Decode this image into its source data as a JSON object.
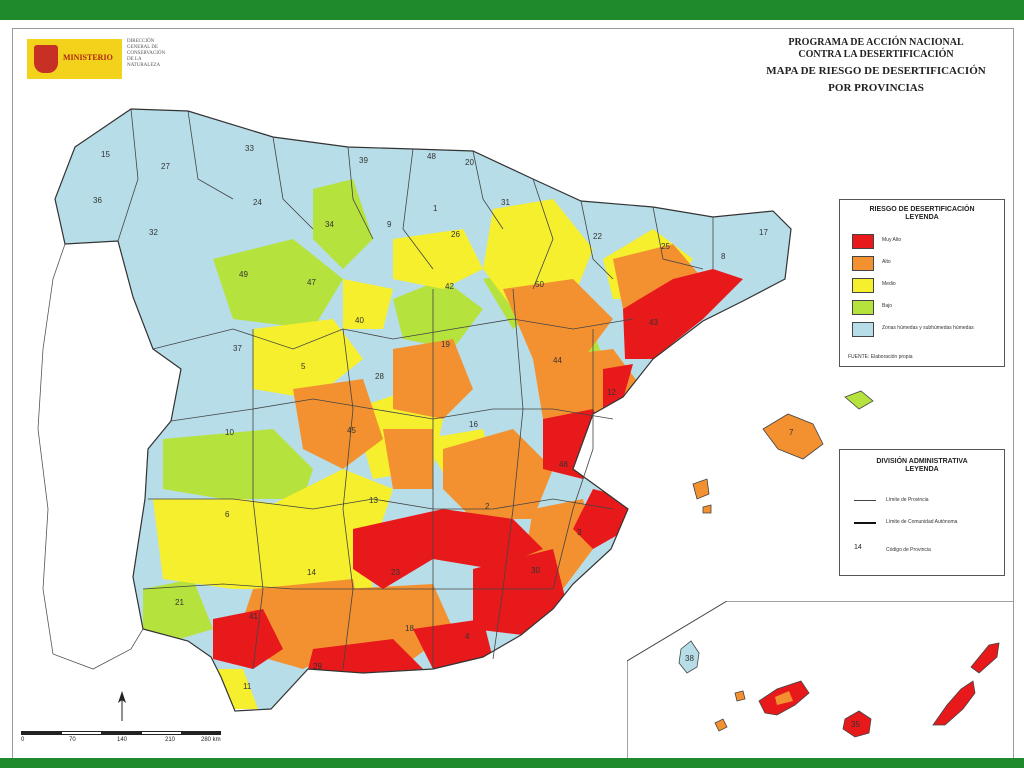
{
  "header": {
    "title_line1": "PROGRAMA DE ACCIÓN NACIONAL",
    "title_line2": "CONTRA LA DESERTIFICACIÓN",
    "map_title_line1": "MAPA DE RIESGO DE DESERTIFICACIÓN",
    "map_title_line2": "POR PROVINCIAS",
    "logo_text": "MINISTERIO",
    "ministry_text": "DIRECCIÓN GENERAL DE CONSERVACIÓN DE LA NATURALEZA"
  },
  "legend": {
    "title": "RIESGO DE DESERTIFICACIÓN",
    "subtitle": "LEYENDA",
    "items": [
      {
        "label": "Muy Alto",
        "color": "#e8191b"
      },
      {
        "label": "Alto",
        "color": "#f39131"
      },
      {
        "label": "Medio",
        "color": "#f6ef2d"
      },
      {
        "label": "Bajo",
        "color": "#b5e23d"
      },
      {
        "label": "Zonas húmedas y subhúmedas húmedas",
        "color": "#b7dde8"
      }
    ],
    "source": "FUENTE: Elaboración propia"
  },
  "admin_legend": {
    "title": "DIVISIÓN ADMINISTRATIVA",
    "subtitle": "LEYENDA",
    "province_limit": "Límite de Provincia",
    "community_limit": "Límite de Comunidad Autónoma",
    "code_sample": "14",
    "code_label": "Código de Provincia"
  },
  "scale": {
    "ticks": [
      "0",
      "70",
      "140",
      "210",
      "280 km"
    ]
  },
  "province_labels": [
    {
      "code": "15"
    },
    {
      "code": "27"
    },
    {
      "code": "33"
    },
    {
      "code": "39"
    },
    {
      "code": "48"
    },
    {
      "code": "20"
    },
    {
      "code": "36"
    },
    {
      "code": "32"
    },
    {
      "code": "24"
    },
    {
      "code": "34"
    },
    {
      "code": "9"
    },
    {
      "code": "1"
    },
    {
      "code": "31"
    },
    {
      "code": "26"
    },
    {
      "code": "22"
    },
    {
      "code": "25"
    },
    {
      "code": "17"
    },
    {
      "code": "8"
    },
    {
      "code": "43"
    },
    {
      "code": "49"
    },
    {
      "code": "47"
    },
    {
      "code": "42"
    },
    {
      "code": "50"
    },
    {
      "code": "40"
    },
    {
      "code": "37"
    },
    {
      "code": "5"
    },
    {
      "code": "28"
    },
    {
      "code": "19"
    },
    {
      "code": "44"
    },
    {
      "code": "12"
    },
    {
      "code": "45"
    },
    {
      "code": "16"
    },
    {
      "code": "46"
    },
    {
      "code": "10"
    },
    {
      "code": "6"
    },
    {
      "code": "13"
    },
    {
      "code": "2"
    },
    {
      "code": "3"
    },
    {
      "code": "30"
    },
    {
      "code": "14"
    },
    {
      "code": "23"
    },
    {
      "code": "21"
    },
    {
      "code": "41"
    },
    {
      "code": "18"
    },
    {
      "code": "4"
    },
    {
      "code": "29"
    },
    {
      "code": "11"
    },
    {
      "code": "7"
    },
    {
      "code": "38"
    },
    {
      "code": "35"
    }
  ]
}
